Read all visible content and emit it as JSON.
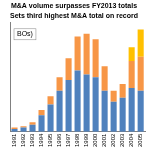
{
  "chart_data": {
    "type": "bar",
    "title": "M&A volume surpasses FY2013 totals",
    "subtitle": "Sets third highest M&A total on record",
    "annotation": "BOs)",
    "categories": [
      "1991",
      "1992",
      "1993",
      "1994",
      "1995",
      "1996",
      "1997",
      "1998",
      "1999",
      "2000",
      "2001",
      "2002",
      "2003",
      "2004",
      "2005"
    ],
    "series": [
      {
        "color": "#4f81bd",
        "values": [
          2,
          3,
          5,
          12,
          20,
          30,
          38,
          45,
          42,
          40,
          30,
          22,
          25,
          32,
          30
        ]
      },
      {
        "color": "#f79646",
        "values": [
          1,
          1,
          2,
          4,
          6,
          10,
          16,
          25,
          30,
          28,
          18,
          8,
          10,
          20,
          25
        ]
      },
      {
        "color": "#ffc000",
        "values": [
          0,
          0,
          0,
          0,
          0,
          0,
          0,
          0,
          0,
          0,
          0,
          0,
          0,
          10,
          20
        ]
      }
    ],
    "ylim": [
      0,
      80
    ],
    "stacked": true,
    "grid": false,
    "tick_labels": "x"
  }
}
